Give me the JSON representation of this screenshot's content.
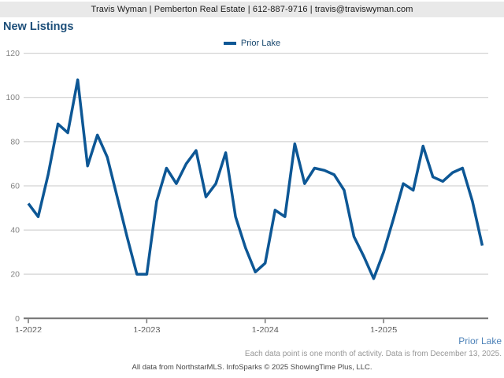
{
  "header": {
    "contact_line": "Travis Wyman | Pemberton Real Estate | 612-887-9716 | travis@traviswyman.com"
  },
  "title": "New Listings",
  "legend": {
    "label": "Prior Lake",
    "swatch_color": "#0d5795"
  },
  "chart_data": {
    "type": "line",
    "title": "New Listings",
    "xlabel": "",
    "ylabel": "",
    "ylim": [
      0,
      120
    ],
    "y_ticks": [
      0,
      20,
      40,
      60,
      80,
      100,
      120
    ],
    "grid": true,
    "legend_position": "top-center",
    "x_start_month": "1-2022",
    "x_end_month": "11-2025",
    "x_tick_labels": [
      "1-2022",
      "1-2023",
      "1-2024",
      "1-2025"
    ],
    "x_tick_month_indices": [
      0,
      12,
      24,
      36
    ],
    "series": [
      {
        "name": "Prior Lake",
        "color": "#0d5795",
        "values": [
          52,
          46,
          65,
          88,
          84,
          108,
          69,
          83,
          73,
          55,
          37,
          20,
          20,
          53,
          68,
          61,
          70,
          76,
          55,
          61,
          75,
          46,
          32,
          21,
          25,
          49,
          46,
          79,
          61,
          68,
          67,
          65,
          58,
          37,
          28,
          18,
          30,
          45,
          61,
          58,
          78,
          64,
          62,
          66,
          68,
          53,
          33
        ]
      }
    ]
  },
  "footer": {
    "series_label": "Prior Lake",
    "note": "Each data point is one month of activity. Data is from December 13, 2025.",
    "attribution": "All data from NorthstarMLS. InfoSparks © 2025 ShowingTime Plus, LLC."
  },
  "colors": {
    "header_bar_bg": "#e9e9e9",
    "title_text": "#1c4e79",
    "line": "#0d5795",
    "gridline": "#c9c9c9",
    "axis_line": "#737373",
    "y_tick_label": "#828282",
    "x_tick_label": "#5a5a5a",
    "bottom_series_label": "#4d82b8",
    "footnote_text": "#979797",
    "attribution_text": "#474747"
  }
}
